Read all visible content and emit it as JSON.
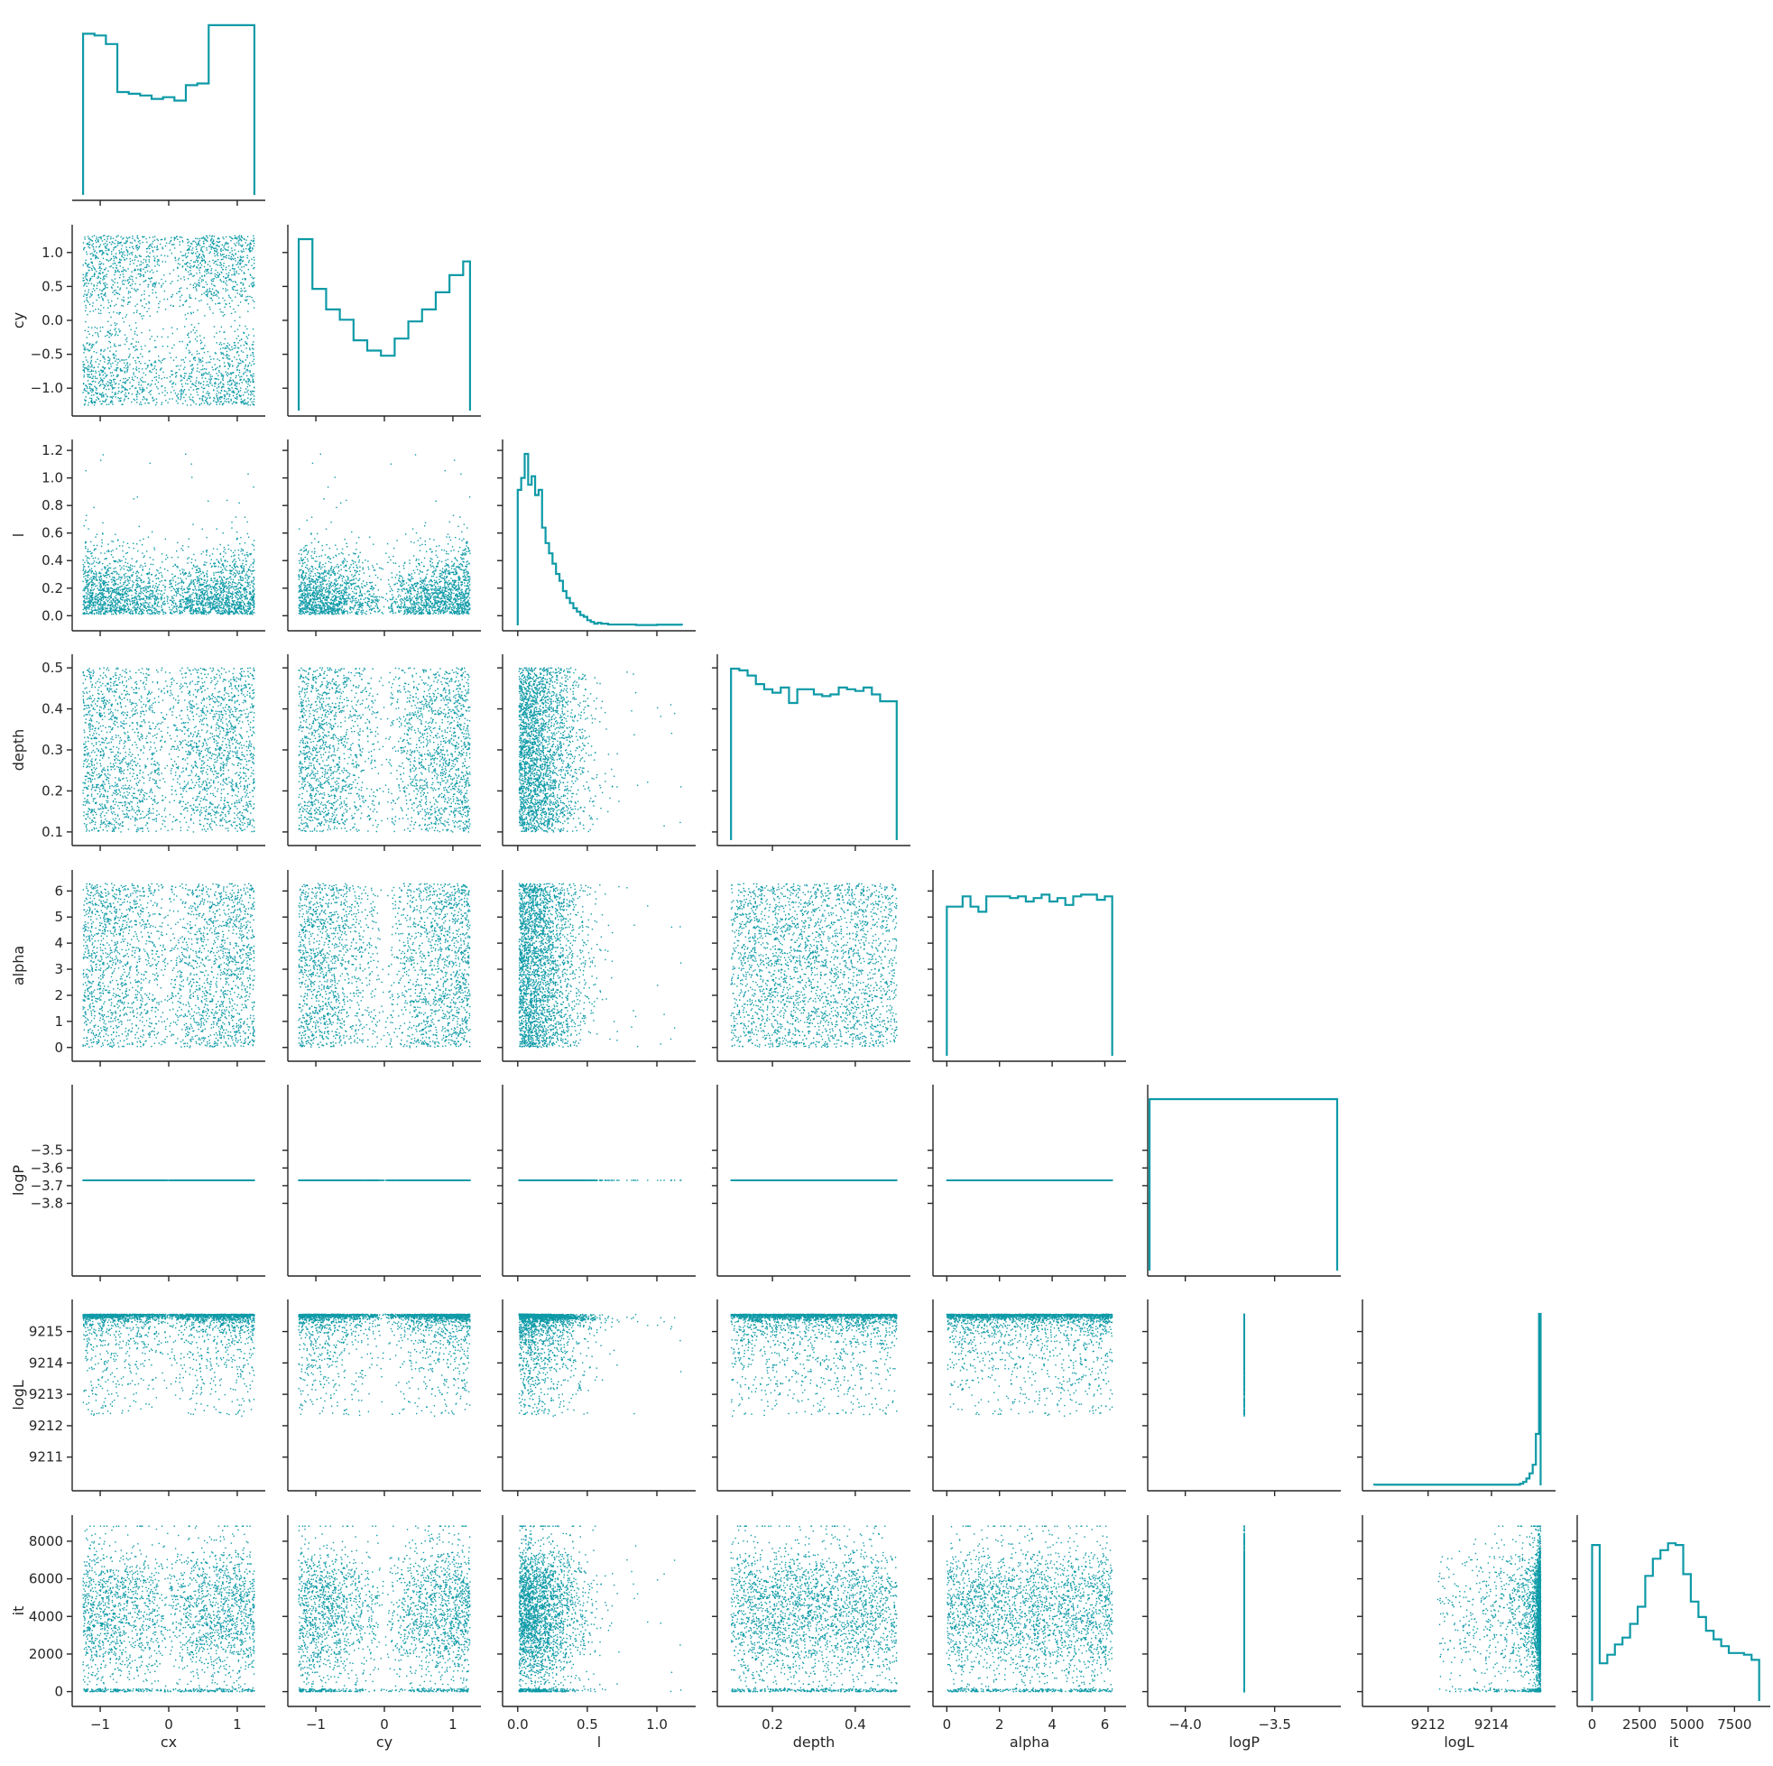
{
  "chart_data": {
    "type": "scatter",
    "kind": "corner-pairplot",
    "color": "#0e9aa7",
    "grid": false,
    "variables": [
      "cx",
      "cy",
      "l",
      "depth",
      "alpha",
      "logP",
      "logL",
      "it"
    ],
    "ranges": {
      "cx": [
        -1.33,
        1.33
      ],
      "cy": [
        -1.33,
        1.33
      ],
      "l": [
        -0.07,
        1.24
      ],
      "depth": [
        0.08,
        0.52
      ],
      "alpha": [
        -0.32,
        6.6
      ],
      "logP": [
        -4.18,
        -3.16
      ],
      "logL": [
        9210.1,
        9215.85
      ],
      "it": [
        -500,
        9100
      ]
    },
    "ticks": {
      "cx": [
        -1,
        0,
        1
      ],
      "cy": [
        -1.0,
        -0.5,
        0.0,
        0.5,
        1.0
      ],
      "l": [
        0.0,
        0.2,
        0.4,
        0.6,
        0.8,
        1.0,
        1.2
      ],
      "depth": [
        0.1,
        0.2,
        0.3,
        0.4,
        0.5
      ],
      "alpha": [
        0,
        1,
        2,
        3,
        4,
        5,
        6
      ],
      "logP": [
        -3.5,
        -3.6,
        -3.7,
        -3.8
      ],
      "logL": [
        9211,
        9212,
        9213,
        9214,
        9215
      ],
      "it": [
        0,
        2000,
        4000,
        6000,
        8000
      ]
    },
    "xticks": {
      "cx": [
        "-1",
        "0",
        "1"
      ],
      "cy": [
        "-1",
        "0",
        "1"
      ],
      "l": [
        "0.0",
        "0.5",
        "1.0"
      ],
      "depth": [
        "0.2",
        "0.4"
      ],
      "alpha": [
        "0",
        "2",
        "4",
        "6"
      ],
      "logP": [
        "-4.0",
        "-3.5"
      ],
      "logL": [
        "9212",
        "9214"
      ],
      "it": [
        "0",
        "2500",
        "5000",
        "7500"
      ]
    },
    "xtick_values": {
      "cx": [
        -1,
        0,
        1
      ],
      "cy": [
        -1,
        0,
        1
      ],
      "l": [
        0.0,
        0.5,
        1.0
      ],
      "depth": [
        0.2,
        0.4
      ],
      "alpha": [
        0,
        2,
        4,
        6
      ],
      "logP": [
        -4.0,
        -3.5
      ],
      "logL": [
        9212,
        9214
      ],
      "it": [
        0,
        2500,
        5000,
        7500
      ]
    },
    "yticks": {
      "cy": [
        "-1.0",
        "-0.5",
        "0.0",
        "0.5",
        "1.0"
      ],
      "l": [
        "0.0",
        "0.2",
        "0.4",
        "0.6",
        "0.8",
        "1.0",
        "1.2"
      ],
      "depth": [
        "0.1",
        "0.2",
        "0.3",
        "0.4",
        "0.5"
      ],
      "alpha": [
        "0",
        "1",
        "2",
        "3",
        "4",
        "5",
        "6"
      ],
      "logP": [
        "-3.5",
        "-3.6",
        "-3.7",
        "-3.8"
      ],
      "logL": [
        "9211",
        "9212",
        "9213",
        "9214",
        "9215"
      ],
      "it": [
        "0",
        "2000",
        "4000",
        "6000",
        "8000"
      ]
    },
    "ytick_values": {
      "cy": [
        -1.0,
        -0.5,
        0.0,
        0.5,
        1.0
      ],
      "l": [
        0.0,
        0.2,
        0.4,
        0.6,
        0.8,
        1.0,
        1.2
      ],
      "depth": [
        0.1,
        0.2,
        0.3,
        0.4,
        0.5
      ],
      "alpha": [
        0,
        1,
        2,
        3,
        4,
        5,
        6
      ],
      "logP": [
        -3.5,
        -3.6,
        -3.7,
        -3.8
      ],
      "logL": [
        9211,
        9212,
        9213,
        9214,
        9215
      ],
      "it": [
        0,
        2000,
        4000,
        6000,
        8000
      ]
    },
    "histograms": {
      "cx": {
        "edges": [
          -1.25,
          -1.083,
          -0.917,
          -0.75,
          -0.583,
          -0.417,
          -0.25,
          -0.083,
          0.083,
          0.25,
          0.417,
          0.583,
          0.75,
          0.917,
          1.083,
          1.25
        ],
        "counts": [
          0.94,
          0.93,
          0.88,
          0.6,
          0.59,
          0.58,
          0.56,
          0.57,
          0.55,
          0.64,
          0.65,
          0.99,
          0.99,
          0.99,
          0.99
        ]
      },
      "cy": {
        "edges": [
          -1.25,
          -1.05,
          -0.85,
          -0.65,
          -0.45,
          -0.25,
          -0.05,
          0.15,
          0.35,
          0.55,
          0.75,
          0.95,
          1.15,
          1.25
        ],
        "counts": [
          1.0,
          0.71,
          0.59,
          0.53,
          0.41,
          0.35,
          0.32,
          0.42,
          0.52,
          0.59,
          0.69,
          0.79,
          0.87
        ]
      },
      "l": {
        "edges": [
          0.0,
          0.025,
          0.05,
          0.075,
          0.1,
          0.125,
          0.15,
          0.175,
          0.2,
          0.225,
          0.25,
          0.275,
          0.3,
          0.325,
          0.35,
          0.375,
          0.4,
          0.425,
          0.45,
          0.475,
          0.5,
          0.525,
          0.55,
          0.575,
          0.6,
          0.65,
          0.75,
          0.85,
          1.0,
          1.18
        ],
        "counts": [
          0.79,
          0.86,
          1.0,
          0.82,
          0.87,
          0.76,
          0.79,
          0.57,
          0.48,
          0.42,
          0.36,
          0.3,
          0.26,
          0.2,
          0.16,
          0.13,
          0.1,
          0.08,
          0.06,
          0.05,
          0.03,
          0.02,
          0.01,
          0.015,
          0.01,
          0.005,
          0.005,
          0.002,
          0.004
        ]
      },
      "depth": {
        "edges": [
          0.1,
          0.12,
          0.14,
          0.16,
          0.18,
          0.2,
          0.22,
          0.24,
          0.26,
          0.28,
          0.3,
          0.32,
          0.34,
          0.36,
          0.38,
          0.4,
          0.42,
          0.44,
          0.46,
          0.48,
          0.5
        ],
        "counts": [
          1.0,
          0.99,
          0.96,
          0.91,
          0.88,
          0.86,
          0.89,
          0.8,
          0.88,
          0.88,
          0.85,
          0.84,
          0.85,
          0.89,
          0.88,
          0.87,
          0.89,
          0.85,
          0.81,
          0.81
        ]
      },
      "alpha": {
        "edges": [
          0,
          0.3,
          0.6,
          0.9,
          1.2,
          1.5,
          1.8,
          2.1,
          2.4,
          2.7,
          3.0,
          3.3,
          3.6,
          3.9,
          4.2,
          4.5,
          4.8,
          5.1,
          5.4,
          5.7,
          6.0,
          6.28
        ],
        "counts": [
          0.87,
          0.87,
          0.93,
          0.87,
          0.84,
          0.93,
          0.93,
          0.93,
          0.92,
          0.93,
          0.9,
          0.92,
          0.94,
          0.9,
          0.92,
          0.88,
          0.93,
          0.94,
          0.94,
          0.91,
          0.93
        ]
      },
      "logP": {
        "edges": [
          -4.2,
          -3.15
        ],
        "counts": [
          1.0
        ]
      },
      "logL": {
        "edges": [
          9210.3,
          9214.9,
          9215.0,
          9215.1,
          9215.2,
          9215.3,
          9215.4,
          9215.5,
          9215.55
        ],
        "counts": [
          0.004,
          0.01,
          0.02,
          0.04,
          0.07,
          0.12,
          0.3,
          1.0
        ]
      },
      "it": {
        "edges": [
          0,
          400,
          800,
          1200,
          1600,
          2000,
          2400,
          2800,
          3200,
          3600,
          4000,
          4400,
          4800,
          5200,
          5600,
          6000,
          6400,
          6800,
          7200,
          7600,
          8000,
          8400,
          8800
        ],
        "counts": [
          0.91,
          0.22,
          0.27,
          0.33,
          0.37,
          0.45,
          0.55,
          0.73,
          0.83,
          0.88,
          0.92,
          0.91,
          0.74,
          0.58,
          0.49,
          0.41,
          0.36,
          0.32,
          0.28,
          0.28,
          0.27,
          0.24
        ]
      }
    }
  }
}
